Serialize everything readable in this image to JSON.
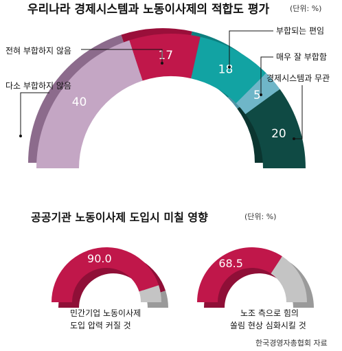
{
  "chart_data": [
    {
      "type": "pie",
      "style": "half-donut",
      "title": "우리나라 경제시스템과 노동이사제의 적합도 평가",
      "unit": "(단위: %)",
      "slices": [
        {
          "label": "다소 부합하지 않음",
          "value": 40,
          "color": "#c4a6c4",
          "shade": "#8c6b8c"
        },
        {
          "label": "전혀 부합하지 않음",
          "value": 17,
          "color": "#c0174a",
          "shade": "#9a0f3a"
        },
        {
          "label": "부합되는 편임",
          "value": 18,
          "color": "#12a3a3",
          "shade": "#0d7f7f"
        },
        {
          "label": "매우 잘 부합함",
          "value": 5,
          "color": "#6fb6c8",
          "shade": "#4e93a4"
        },
        {
          "label": "경제시스템과 무관",
          "value": 20,
          "color": "#0f4a44",
          "shade": "#0b3530"
        }
      ]
    },
    {
      "type": "pie",
      "style": "half-donut",
      "title": "공공기관 노동이사제 도입시 미칠 영향",
      "unit": "(단위: %)",
      "slices": [
        {
          "label": "민간기업 노동이사제 도입 압력 커질 것",
          "value": 90.0,
          "display": "90.0",
          "color": "#c0174a",
          "shade": "#8f0f37"
        },
        {
          "label": "",
          "value": 10.0,
          "color": "#c4c4c4",
          "shade": "#9a9a9a"
        }
      ],
      "caption_lines": [
        "민간기업 노동이사제",
        "도입 압력 커질 것"
      ]
    },
    {
      "type": "pie",
      "style": "half-donut",
      "title": "",
      "slices": [
        {
          "label": "노조 측으로 힘의 쏠림 현상 심화시킬 것",
          "value": 68.5,
          "display": "68.5",
          "color": "#c0174a",
          "shade": "#8f0f37"
        },
        {
          "label": "",
          "value": 31.5,
          "color": "#c4c4c4",
          "shade": "#9a9a9a"
        }
      ],
      "caption_lines": [
        "노조 측으로 힘의",
        "쏠림 현상 심화시킬 것"
      ]
    }
  ],
  "source": "한국경영자총협회 자료"
}
